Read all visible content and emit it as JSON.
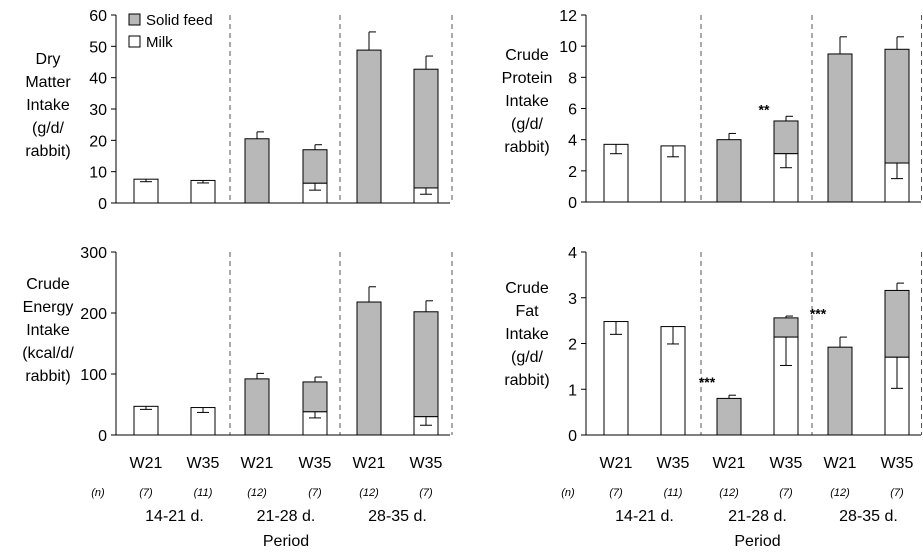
{
  "legend": {
    "items": [
      {
        "label": "Solid feed",
        "color": "#b8b8b8"
      },
      {
        "label": "Milk",
        "color": "#ffffff"
      }
    ]
  },
  "groups": [
    "W21",
    "W35",
    "W21",
    "W35",
    "W21",
    "W35"
  ],
  "n_label": "(n)",
  "n_values": [
    "(7)",
    "(11)",
    "(12)",
    "(7)",
    "(12)",
    "(7)"
  ],
  "periods": [
    "14-21 d.",
    "21-28 d.",
    "28-35 d."
  ],
  "xlabel": "Period",
  "chart_data": [
    {
      "type": "bar",
      "stacked": true,
      "ylabel_lines": [
        "Dry",
        "Matter",
        "Intake",
        "(g/d/",
        "rabbit)"
      ],
      "ylim": [
        0,
        60
      ],
      "yticks": [
        0,
        10,
        20,
        30,
        40,
        50,
        60
      ],
      "categories": [
        "W21 14-21 d.",
        "W35 14-21 d.",
        "W21 21-28 d.",
        "W35 21-28 d.",
        "W21 28-35 d.",
        "W35 28-35 d."
      ],
      "series": [
        {
          "name": "Milk",
          "values": [
            7.6,
            7.2,
            0,
            6.3,
            0,
            4.8
          ],
          "error": [
            0.8,
            0.8,
            0,
            2.2,
            0,
            2.0
          ]
        },
        {
          "name": "Solid feed",
          "values": [
            0,
            0,
            20.5,
            10.7,
            48.8,
            37.9
          ],
          "error": [
            0,
            0,
            2.2,
            1.6,
            5.8,
            4.2
          ]
        }
      ],
      "annotations": []
    },
    {
      "type": "bar",
      "stacked": true,
      "ylabel_lines": [
        "Crude",
        "Protein",
        "Intake",
        "(g/d/",
        "rabbit)"
      ],
      "ylim": [
        0,
        12
      ],
      "yticks": [
        0,
        2,
        4,
        6,
        8,
        10,
        12
      ],
      "categories": [
        "W21 14-21 d.",
        "W35 14-21 d.",
        "W21 21-28 d.",
        "W35 21-28 d.",
        "W21 28-35 d.",
        "W35 28-35 d."
      ],
      "series": [
        {
          "name": "Milk",
          "values": [
            3.7,
            3.6,
            0,
            3.1,
            0,
            2.5
          ],
          "error": [
            0.6,
            0.7,
            0,
            0.9,
            0,
            1.0
          ]
        },
        {
          "name": "Solid feed",
          "values": [
            0,
            0,
            4.0,
            2.1,
            9.5,
            7.3
          ],
          "error": [
            0,
            0,
            0.4,
            0.3,
            1.1,
            0.8
          ]
        }
      ],
      "annotations": [
        {
          "text": "**",
          "category_index": 3,
          "y": 5.6
        }
      ]
    },
    {
      "type": "bar",
      "stacked": true,
      "ylabel_lines": [
        "Crude",
        "Energy",
        "Intake",
        "(kcal/d/",
        "rabbit)"
      ],
      "ylim": [
        0,
        300
      ],
      "yticks": [
        0,
        100,
        200,
        300
      ],
      "categories": [
        "W21 14-21 d.",
        "W35 14-21 d.",
        "W21 21-28 d.",
        "W35 21-28 d.",
        "W21 28-35 d.",
        "W35 28-35 d."
      ],
      "series": [
        {
          "name": "Milk",
          "values": [
            47,
            45,
            0,
            38,
            0,
            30
          ],
          "error": [
            5,
            8,
            0,
            10,
            0,
            14
          ]
        },
        {
          "name": "Solid feed",
          "values": [
            0,
            0,
            92,
            49,
            218,
            172
          ],
          "error": [
            0,
            0,
            9,
            8,
            25,
            18
          ]
        }
      ],
      "annotations": []
    },
    {
      "type": "bar",
      "stacked": true,
      "ylabel_lines": [
        "Crude",
        "Fat",
        "Intake",
        "(g/d/",
        "rabbit)"
      ],
      "ylim": [
        0,
        4
      ],
      "yticks": [
        0,
        1,
        2,
        3,
        4
      ],
      "categories": [
        "W21 14-21 d.",
        "W35 14-21 d.",
        "W21 21-28 d.",
        "W35 21-28 d.",
        "W21 28-35 d.",
        "W35 28-35 d."
      ],
      "series": [
        {
          "name": "Milk",
          "values": [
            2.48,
            2.37,
            0,
            2.14,
            0,
            1.7
          ],
          "error": [
            0.28,
            0.38,
            0,
            0.62,
            0,
            0.68
          ]
        },
        {
          "name": "Solid feed",
          "values": [
            0,
            0,
            0.8,
            0.42,
            1.92,
            1.46
          ],
          "error": [
            0,
            0,
            0.07,
            0.04,
            0.22,
            0.16
          ]
        }
      ],
      "annotations": [
        {
          "text": "***",
          "category_index": 2,
          "y": 1.05
        },
        {
          "text": "***",
          "category_index": 4,
          "y": 2.55
        }
      ]
    }
  ]
}
